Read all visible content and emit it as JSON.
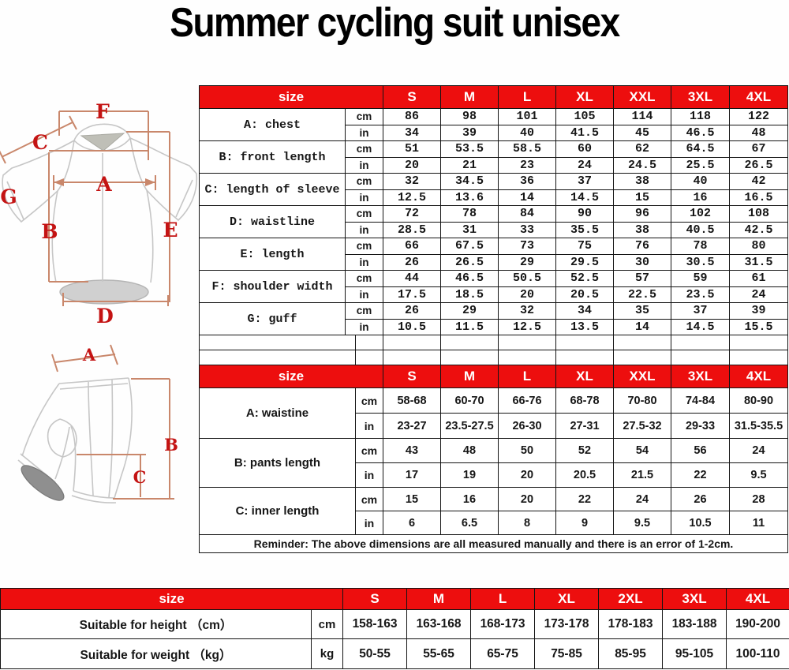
{
  "title": "Summer cycling suit unisex",
  "colors": {
    "header_red": "#ed0e0e",
    "header_text": "#ffffff",
    "table_border": "#141414",
    "diagram_letter_red": "#c41313",
    "diagram_line_salmon": "#c9876b",
    "garment_outline_gray": "#c6c6c6"
  },
  "jersey_table": {
    "header": [
      "size",
      "S",
      "M",
      "L",
      "XL",
      "XXL",
      "3XL",
      "4XL"
    ],
    "unit_labels": [
      "cm",
      "in"
    ],
    "rows": [
      {
        "label": "A: chest",
        "cm": [
          "86",
          "98",
          "101",
          "105",
          "114",
          "118",
          "122"
        ],
        "in": [
          "34",
          "39",
          "40",
          "41.5",
          "45",
          "46.5",
          "48"
        ]
      },
      {
        "label": "B: front length",
        "cm": [
          "51",
          "53.5",
          "58.5",
          "60",
          "62",
          "64.5",
          "67"
        ],
        "in": [
          "20",
          "21",
          "23",
          "24",
          "24.5",
          "25.5",
          "26.5"
        ]
      },
      {
        "label": "C: length of sleeve",
        "cm": [
          "32",
          "34.5",
          "36",
          "37",
          "38",
          "40",
          "42"
        ],
        "in": [
          "12.5",
          "13.6",
          "14",
          "14.5",
          "15",
          "16",
          "16.5"
        ]
      },
      {
        "label": "D: waistline",
        "cm": [
          "72",
          "78",
          "84",
          "90",
          "96",
          "102",
          "108"
        ],
        "in": [
          "28.5",
          "31",
          "33",
          "35.5",
          "38",
          "40.5",
          "42.5"
        ]
      },
      {
        "label": "E: length",
        "cm": [
          "66",
          "67.5",
          "73",
          "75",
          "76",
          "78",
          "80"
        ],
        "in": [
          "26",
          "26.5",
          "29",
          "29.5",
          "30",
          "30.5",
          "31.5"
        ]
      },
      {
        "label": "F: shoulder width",
        "cm": [
          "44",
          "46.5",
          "50.5",
          "52.5",
          "57",
          "59",
          "61"
        ],
        "in": [
          "17.5",
          "18.5",
          "20",
          "20.5",
          "22.5",
          "23.5",
          "24"
        ]
      },
      {
        "label": "G: guff",
        "cm": [
          "26",
          "29",
          "32",
          "34",
          "35",
          "37",
          "39"
        ],
        "in": [
          "10.5",
          "11.5",
          "12.5",
          "13.5",
          "14",
          "14.5",
          "15.5"
        ]
      }
    ]
  },
  "pants_table": {
    "header": [
      "size",
      "S",
      "M",
      "L",
      "XL",
      "XXL",
      "3XL",
      "4XL"
    ],
    "unit_labels": [
      "cm",
      "in"
    ],
    "rows": [
      {
        "label": "A: waistine",
        "cm": [
          "58-68",
          "60-70",
          "66-76",
          "68-78",
          "70-80",
          "74-84",
          "80-90"
        ],
        "in": [
          "23-27",
          "23.5-27.5",
          "26-30",
          "27-31",
          "27.5-32",
          "29-33",
          "31.5-35.5"
        ]
      },
      {
        "label": "B: pants length",
        "cm": [
          "43",
          "48",
          "50",
          "52",
          "54",
          "56",
          "24"
        ],
        "in": [
          "17",
          "19",
          "20",
          "20.5",
          "21.5",
          "22",
          "9.5"
        ]
      },
      {
        "label": "C: inner length",
        "cm": [
          "15",
          "16",
          "20",
          "22",
          "24",
          "26",
          "28"
        ],
        "in": [
          "6",
          "6.5",
          "8",
          "9",
          "9.5",
          "10.5",
          "11"
        ]
      }
    ],
    "reminder": "Reminder: The above dimensions are all measured manually and there is an error of 1-2cm."
  },
  "fit_table": {
    "header": [
      "size",
      "S",
      "M",
      "L",
      "XL",
      "2XL",
      "3XL",
      "4XL"
    ],
    "rows": [
      {
        "label": "Suitable for height （cm）",
        "unit": "cm",
        "values": [
          "158-163",
          "163-168",
          "168-173",
          "173-178",
          "178-183",
          "183-188",
          "190-200"
        ]
      },
      {
        "label": "Suitable for weight （kg）",
        "unit": "kg",
        "values": [
          "50-55",
          "55-65",
          "65-75",
          "75-85",
          "85-95",
          "95-105",
          "100-110"
        ]
      }
    ]
  },
  "diagrams": {
    "jersey_letters": [
      "F",
      "C",
      "A",
      "G",
      "B",
      "E",
      "D"
    ],
    "shorts_letters": [
      "A",
      "B",
      "C"
    ]
  }
}
